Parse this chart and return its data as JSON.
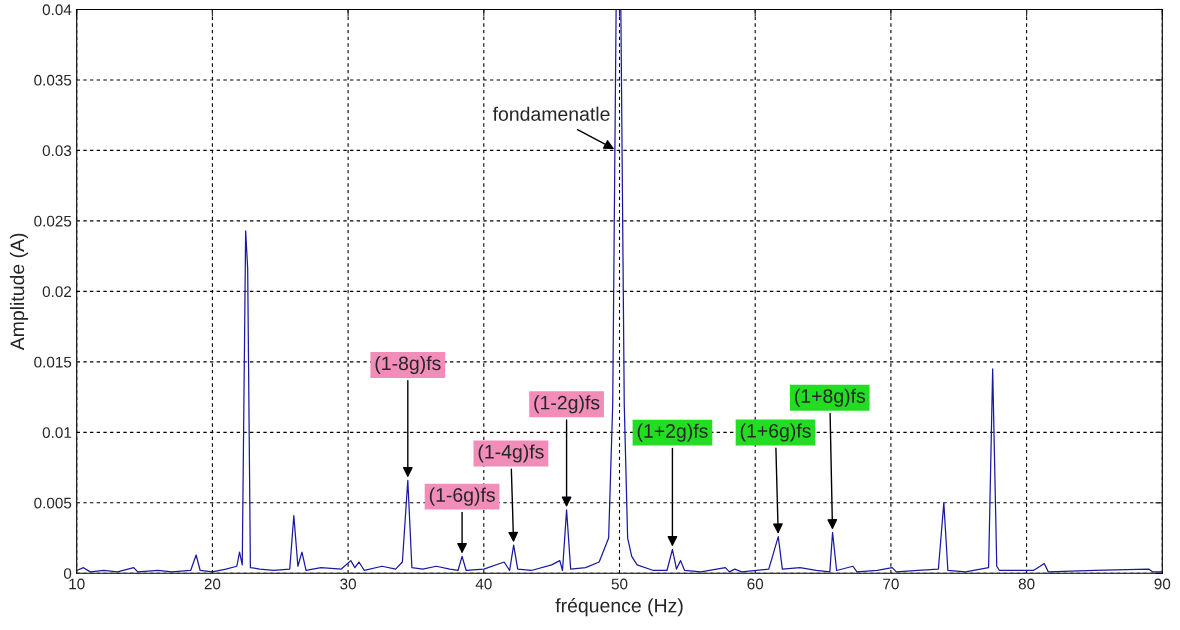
{
  "chart_data": {
    "type": "line",
    "xlabel": "fréquence (Hz)",
    "ylabel": "Amplitude (A)",
    "xlim": [
      10,
      90
    ],
    "ylim": [
      0,
      0.04
    ],
    "xticks": [
      10,
      20,
      30,
      40,
      50,
      60,
      70,
      80,
      90
    ],
    "yticks": [
      0,
      0.005,
      0.01,
      0.015,
      0.02,
      0.025,
      0.03,
      0.035,
      0.04
    ],
    "grid": true,
    "marker": "none",
    "line_style": "solid",
    "series": [
      {
        "color": "#1a1aa0",
        "x": [
          10,
          10.5,
          11,
          12,
          13,
          14.2,
          14.5,
          16,
          17,
          18.4,
          18.8,
          19.1,
          20,
          21,
          21.8,
          22,
          22.2,
          22.45,
          22.6,
          22.8,
          23.5,
          24.5,
          25.7,
          26,
          26.3,
          26.6,
          26.9,
          28,
          29.5,
          30.2,
          30.5,
          30.8,
          31.2,
          32.5,
          33.5,
          34,
          34.4,
          34.7,
          35.5,
          36.5,
          37.5,
          38.1,
          38.4,
          38.7,
          40,
          41.5,
          41.9,
          42.2,
          42.5,
          43.5,
          45,
          45.6,
          45.8,
          46.1,
          46.4,
          47.5,
          48.5,
          49.2,
          49.5,
          49.75,
          50.1,
          50.35,
          50.6,
          50.9,
          51.3,
          52.5,
          53.5,
          53.9,
          54.2,
          54.5,
          54.8,
          56,
          57.8,
          58.1,
          58.5,
          59,
          61,
          61.7,
          62,
          63.3,
          64.5,
          65.5,
          65.7,
          66,
          67.2,
          67.5,
          69,
          70.1,
          70.4,
          72,
          73.5,
          73.9,
          74.2,
          75.5,
          77.2,
          77.5,
          77.8,
          78,
          80.5,
          81,
          81.3,
          81.6,
          85,
          89,
          89.3,
          90
        ],
        "values": [
          0.0002,
          0.0004,
          0.0001,
          0.0002,
          0.0001,
          0.0004,
          0.0001,
          0.0002,
          0.0001,
          0.0002,
          0.0013,
          0.0002,
          0.0001,
          0.0003,
          0.0005,
          0.0015,
          0.0006,
          0.0243,
          0.0216,
          0.0004,
          0.0003,
          0.0002,
          0.0003,
          0.0041,
          0.0005,
          0.0015,
          0.0002,
          0.0004,
          0.0003,
          0.0009,
          0.0004,
          0.0008,
          0.0002,
          0.0005,
          0.0003,
          0.0008,
          0.0066,
          0.0004,
          0.0003,
          0.0005,
          0.0003,
          0.0002,
          0.0012,
          0.0002,
          0.0003,
          0.0008,
          0.0002,
          0.002,
          0.0003,
          0.0002,
          0.0006,
          0.0009,
          0.0002,
          0.0045,
          0.0003,
          0.0004,
          0.0008,
          0.0025,
          0.012,
          0.04,
          0.04,
          0.012,
          0.0025,
          0.0012,
          0.0006,
          0.0002,
          0.0002,
          0.0017,
          0.0003,
          0.0009,
          0.0002,
          0.0001,
          0.0004,
          0.0001,
          0.0003,
          0.0001,
          0.0003,
          0.0026,
          0.0003,
          0.0004,
          0.0002,
          0.0001,
          0.0029,
          0.0002,
          0.0005,
          0.0001,
          0.0002,
          0.0004,
          0.0001,
          0.0002,
          0.0003,
          0.005,
          0.0002,
          0.0001,
          0.0004,
          0.0145,
          0.0005,
          0.0002,
          0.0002,
          0.0005,
          0.0007,
          0.0001,
          0.0002,
          0.0003,
          0.0001,
          0.0001
        ]
      }
    ],
    "annotations": [
      {
        "text": "fondamenatle",
        "x": 49.8,
        "y": 0.03
      },
      {
        "text": "(1-8g)fs",
        "x": 34.4,
        "y": 0.0066
      },
      {
        "text": "(1-6g)fs",
        "x": 38.4,
        "y": 0.0012
      },
      {
        "text": "(1-4g)fs",
        "x": 42.2,
        "y": 0.002
      },
      {
        "text": "(1-2g)fs",
        "x": 46.1,
        "y": 0.0045
      },
      {
        "text": "(1+2g)fs",
        "x": 53.9,
        "y": 0.0017
      },
      {
        "text": "(1+6g)fs",
        "x": 61.7,
        "y": 0.0026
      },
      {
        "text": "(1+8g)fs",
        "x": 65.7,
        "y": 0.0029
      }
    ]
  }
}
